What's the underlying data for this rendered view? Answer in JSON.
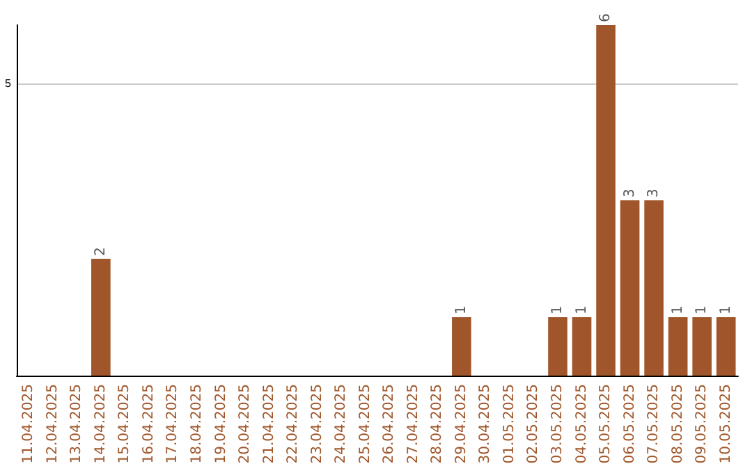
{
  "chart_data": {
    "type": "bar",
    "categories": [
      "11.04.2025",
      "12.04.2025",
      "13.04.2025",
      "14.04.2025",
      "15.04.2025",
      "16.04.2025",
      "17.04.2025",
      "18.04.2025",
      "19.04.2025",
      "20.04.2025",
      "21.04.2025",
      "22.04.2025",
      "23.04.2025",
      "24.04.2025",
      "25.04.2025",
      "26.04.2025",
      "27.04.2025",
      "28.04.2025",
      "29.04.2025",
      "30.04.2025",
      "01.05.2025",
      "02.05.2025",
      "03.05.2025",
      "04.05.2025",
      "05.05.2025",
      "06.05.2025",
      "07.05.2025",
      "08.05.2025",
      "09.05.2025",
      "10.05.2025"
    ],
    "values": [
      0,
      0,
      0,
      2,
      0,
      0,
      0,
      0,
      0,
      0,
      0,
      0,
      0,
      0,
      0,
      0,
      0,
      0,
      1,
      0,
      0,
      0,
      1,
      1,
      6,
      3,
      3,
      1,
      1,
      1
    ],
    "value_labels": [
      null,
      null,
      null,
      "2",
      null,
      null,
      null,
      null,
      null,
      null,
      null,
      null,
      null,
      null,
      null,
      null,
      null,
      null,
      "1",
      null,
      null,
      null,
      "1",
      "1",
      "6",
      "3",
      "3",
      "1",
      "1",
      "1"
    ],
    "color": "#a0562a",
    "ylim": [
      0,
      6
    ],
    "yticks": [
      5
    ],
    "grid": "y"
  }
}
